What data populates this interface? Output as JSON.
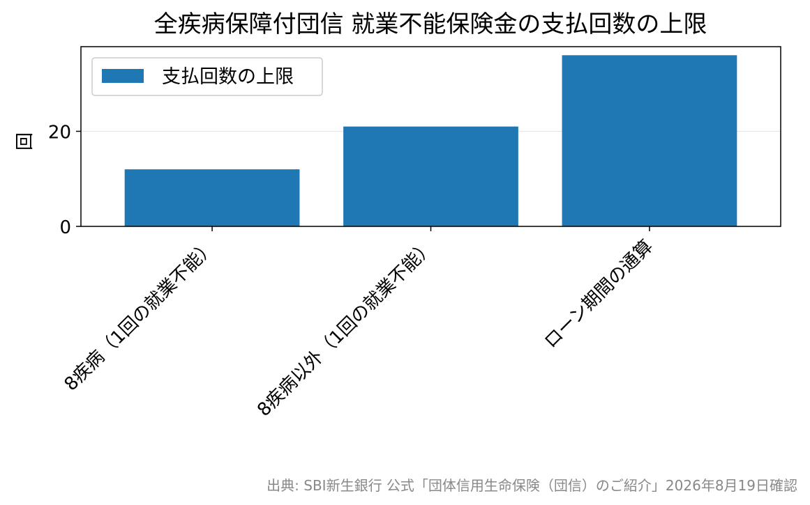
{
  "chart_data": {
    "type": "bar",
    "title": "全疾病保障付団信 就業不能保険金の支払回数の上限",
    "ylabel": "回",
    "xlabel": "",
    "categories": [
      "8疾病（1回の就業不能）",
      "8疾病以外（1回の就業不能）",
      "ローン期間の通算"
    ],
    "series": [
      {
        "name": "支払回数の上限",
        "values": [
          12,
          21,
          36
        ],
        "color": "#1f77b4"
      }
    ],
    "ylim": [
      0,
      37.8
    ],
    "yticks": [
      0,
      20
    ],
    "grid": true,
    "legend_position": "upper-left"
  },
  "source_note": "出典: SBI新生銀行 公式「団体信用生命保険（団信）のご紹介」2026年8月19日確認"
}
